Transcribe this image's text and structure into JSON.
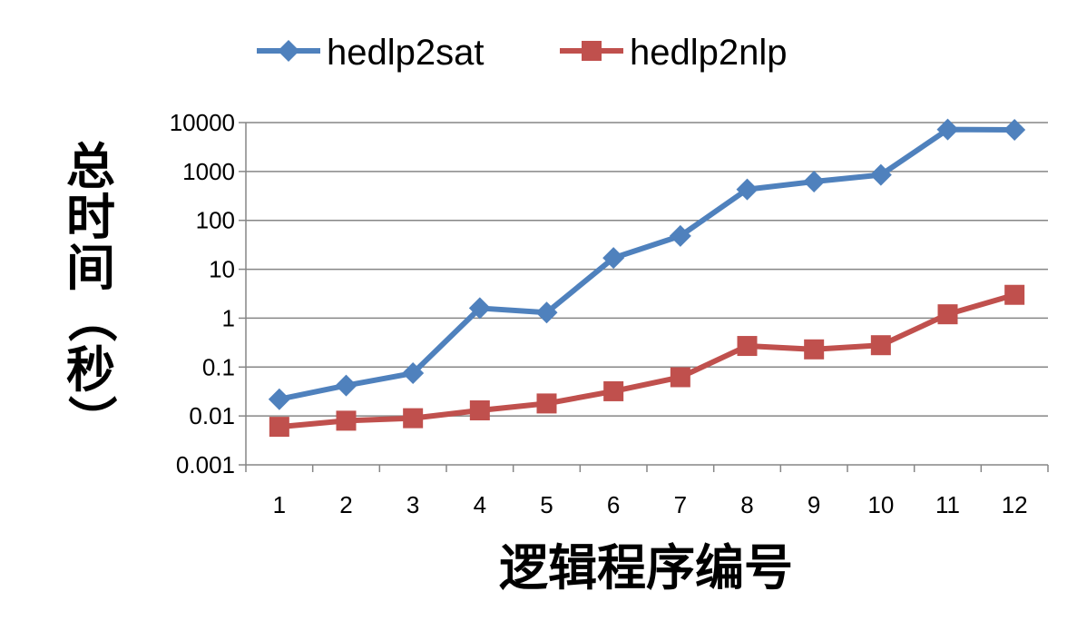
{
  "chart_data": {
    "type": "line",
    "title": "",
    "xlabel": "逻辑程序编号",
    "ylabel": "总时间（秒）",
    "yscale": "log",
    "ylim": [
      0.001,
      10000
    ],
    "y_ticks": [
      0.001,
      0.01,
      0.1,
      1,
      10,
      100,
      1000,
      10000
    ],
    "y_tick_labels": [
      "0.001",
      "0.01",
      "0.1",
      "1",
      "10",
      "100",
      "1000",
      "10000"
    ],
    "categories": [
      "1",
      "2",
      "3",
      "4",
      "5",
      "6",
      "7",
      "8",
      "9",
      "10",
      "11",
      "12"
    ],
    "grid": true,
    "legend_position": "top",
    "series": [
      {
        "name": "hedlp2sat",
        "color": "#4F81BD",
        "marker": "diamond",
        "values": [
          0.022,
          0.042,
          0.075,
          1.6,
          1.3,
          17,
          48,
          430,
          620,
          850,
          7200,
          7100
        ]
      },
      {
        "name": "hedlp2nlp",
        "color": "#C0504D",
        "marker": "square",
        "values": [
          0.006,
          0.008,
          0.009,
          0.013,
          0.018,
          0.032,
          0.062,
          0.27,
          0.23,
          0.28,
          1.2,
          3.0
        ]
      }
    ]
  }
}
